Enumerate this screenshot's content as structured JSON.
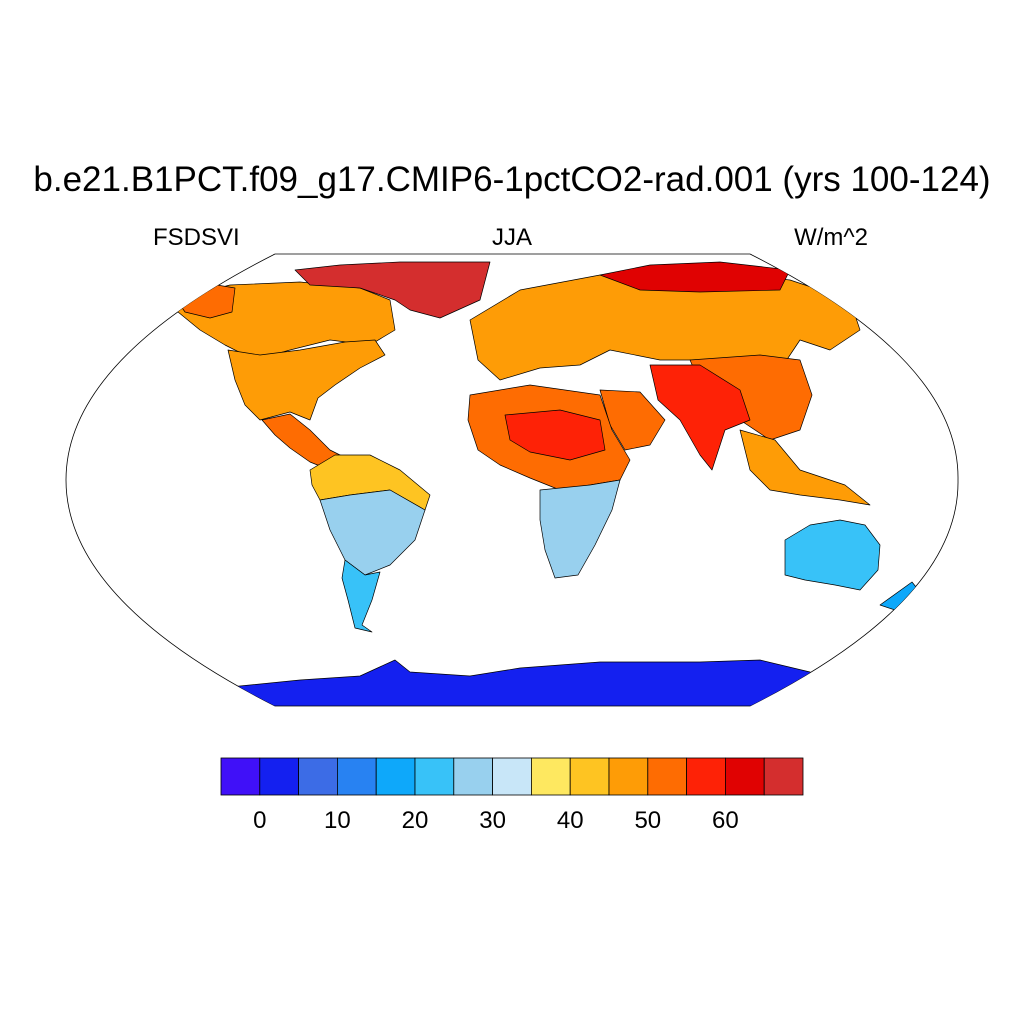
{
  "title": "b.e21.B1PCT.f09_g17.CMIP6-1pctCO2-rad.001 (yrs 100-124)",
  "left_label": "FSDSVI",
  "center_label": "JJA",
  "right_label": "W/m^2",
  "colorbar": {
    "colors": [
      "#4010f8",
      "#1420f0",
      "#3c6ce6",
      "#2882f2",
      "#0ea8fa",
      "#38c2f8",
      "#98d0ee",
      "#c8e6f8",
      "#fee860",
      "#fec422",
      "#fe9c06",
      "#fe6c02",
      "#fe2206",
      "#e00202",
      "#d42e2e"
    ],
    "tick_labels": [
      "0",
      "10",
      "20",
      "30",
      "40",
      "50",
      "60"
    ]
  },
  "map": {
    "projection": "Robinson",
    "regions": [
      {
        "name": "arctic-canada-greenland",
        "level": 15
      },
      {
        "name": "alaska",
        "level": 12
      },
      {
        "name": "canada",
        "level": 11
      },
      {
        "name": "united-states",
        "level": 11
      },
      {
        "name": "central-america",
        "level": 12
      },
      {
        "name": "northern-south-america",
        "level": 10
      },
      {
        "name": "central-south-america",
        "level": 7
      },
      {
        "name": "southern-south-america",
        "level": 6
      },
      {
        "name": "europe-northern-asia",
        "level": 11
      },
      {
        "name": "arctic-siberia",
        "level": 14
      },
      {
        "name": "north-africa",
        "level": 12
      },
      {
        "name": "sahara-core",
        "level": 13
      },
      {
        "name": "southern-africa",
        "level": 7
      },
      {
        "name": "arabia",
        "level": 12
      },
      {
        "name": "india-tibet",
        "level": 13
      },
      {
        "name": "china",
        "level": 12
      },
      {
        "name": "southeast-asia",
        "level": 11
      },
      {
        "name": "australia",
        "level": 6
      },
      {
        "name": "new-zealand",
        "level": 5
      },
      {
        "name": "antarctica",
        "level": 2
      }
    ]
  }
}
